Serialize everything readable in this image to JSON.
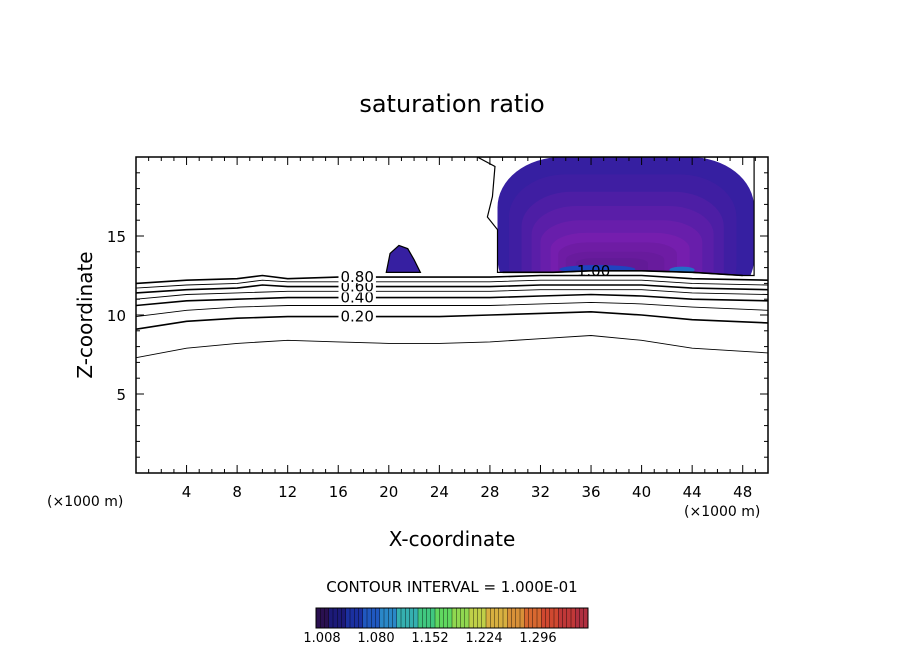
{
  "chart_data": {
    "type": "contour",
    "title": "saturation ratio",
    "xlabel": "X-coordinate",
    "ylabel": "Z-coordinate",
    "x_unit_left": "(×1000 m)",
    "x_unit_right": "(×1000 m)",
    "xlim": [
      0,
      50
    ],
    "ylim": [
      0,
      20
    ],
    "x_ticks": [
      4,
      8,
      12,
      16,
      20,
      24,
      28,
      32,
      36,
      40,
      44,
      48
    ],
    "y_ticks": [
      5,
      10,
      15
    ],
    "contour_interval_text": "CONTOUR INTERVAL = 1.000E-01",
    "contour_lines": [
      {
        "level": "0.10",
        "labeled": false,
        "points": [
          [
            0,
            7.3
          ],
          [
            4,
            7.9
          ],
          [
            8,
            8.2
          ],
          [
            12,
            8.4
          ],
          [
            16,
            8.3
          ],
          [
            20,
            8.2
          ],
          [
            24,
            8.2
          ],
          [
            28,
            8.3
          ],
          [
            32,
            8.5
          ],
          [
            36,
            8.7
          ],
          [
            40,
            8.4
          ],
          [
            44,
            7.9
          ],
          [
            50,
            7.6
          ]
        ]
      },
      {
        "level": "0.20",
        "labeled": true,
        "label_text": "0.20",
        "label_x": 17.5,
        "points": [
          [
            0,
            9.1
          ],
          [
            4,
            9.6
          ],
          [
            8,
            9.8
          ],
          [
            12,
            9.9
          ],
          [
            16,
            9.9
          ],
          [
            20,
            9.9
          ],
          [
            24,
            9.9
          ],
          [
            28,
            10.0
          ],
          [
            32,
            10.1
          ],
          [
            36,
            10.2
          ],
          [
            40,
            10.0
          ],
          [
            44,
            9.7
          ],
          [
            50,
            9.5
          ]
        ]
      },
      {
        "level": "0.30",
        "labeled": false,
        "points": [
          [
            0,
            9.9
          ],
          [
            4,
            10.3
          ],
          [
            8,
            10.5
          ],
          [
            12,
            10.6
          ],
          [
            16,
            10.6
          ],
          [
            20,
            10.6
          ],
          [
            24,
            10.6
          ],
          [
            28,
            10.6
          ],
          [
            32,
            10.7
          ],
          [
            36,
            10.8
          ],
          [
            40,
            10.7
          ],
          [
            44,
            10.5
          ],
          [
            50,
            10.3
          ]
        ]
      },
      {
        "level": "0.40",
        "labeled": true,
        "label_text": "0.40",
        "label_x": 17.5,
        "points": [
          [
            0,
            10.6
          ],
          [
            4,
            10.9
          ],
          [
            8,
            11.0
          ],
          [
            12,
            11.1
          ],
          [
            16,
            11.1
          ],
          [
            20,
            11.1
          ],
          [
            24,
            11.1
          ],
          [
            28,
            11.1
          ],
          [
            32,
            11.2
          ],
          [
            36,
            11.3
          ],
          [
            40,
            11.2
          ],
          [
            44,
            11.0
          ],
          [
            50,
            10.9
          ]
        ]
      },
      {
        "level": "0.50",
        "labeled": false,
        "points": [
          [
            0,
            11.0
          ],
          [
            4,
            11.3
          ],
          [
            8,
            11.4
          ],
          [
            12,
            11.5
          ],
          [
            16,
            11.5
          ],
          [
            20,
            11.5
          ],
          [
            24,
            11.5
          ],
          [
            28,
            11.5
          ],
          [
            32,
            11.6
          ],
          [
            36,
            11.6
          ],
          [
            40,
            11.6
          ],
          [
            44,
            11.4
          ],
          [
            50,
            11.3
          ]
        ]
      },
      {
        "level": "0.60",
        "labeled": true,
        "label_text": "0.60",
        "label_x": 17.5,
        "points": [
          [
            0,
            11.4
          ],
          [
            4,
            11.6
          ],
          [
            8,
            11.7
          ],
          [
            10,
            11.9
          ],
          [
            12,
            11.8
          ],
          [
            16,
            11.8
          ],
          [
            20,
            11.8
          ],
          [
            24,
            11.8
          ],
          [
            28,
            11.8
          ],
          [
            32,
            11.9
          ],
          [
            36,
            11.9
          ],
          [
            40,
            11.9
          ],
          [
            44,
            11.7
          ],
          [
            50,
            11.6
          ]
        ]
      },
      {
        "level": "0.70",
        "labeled": false,
        "points": [
          [
            0,
            11.7
          ],
          [
            4,
            11.9
          ],
          [
            8,
            12.0
          ],
          [
            10,
            12.2
          ],
          [
            12,
            12.1
          ],
          [
            16,
            12.1
          ],
          [
            20,
            12.1
          ],
          [
            24,
            12.1
          ],
          [
            28,
            12.1
          ],
          [
            32,
            12.2
          ],
          [
            36,
            12.2
          ],
          [
            40,
            12.2
          ],
          [
            44,
            12.0
          ],
          [
            50,
            11.9
          ]
        ]
      },
      {
        "level": "0.80",
        "labeled": true,
        "label_text": "0.80",
        "label_x": 17.5,
        "points": [
          [
            0,
            12.0
          ],
          [
            4,
            12.2
          ],
          [
            8,
            12.3
          ],
          [
            10,
            12.5
          ],
          [
            12,
            12.3
          ],
          [
            16,
            12.4
          ],
          [
            20,
            12.4
          ],
          [
            24,
            12.4
          ],
          [
            28,
            12.4
          ],
          [
            32,
            12.5
          ],
          [
            36,
            12.5
          ],
          [
            40,
            12.5
          ],
          [
            44,
            12.3
          ],
          [
            50,
            12.2
          ]
        ]
      },
      {
        "level": "1.00",
        "labeled": true,
        "label_text": "1.00",
        "label_x": 36.2,
        "points": [
          [
            29,
            12.7
          ],
          [
            33,
            12.7
          ],
          [
            36,
            12.8
          ],
          [
            40,
            12.8
          ],
          [
            44,
            12.7
          ],
          [
            48,
            12.5
          ]
        ]
      }
    ],
    "filled_regions": [
      {
        "name": "main",
        "outline": [
          [
            27,
            20
          ],
          [
            28.4,
            19.4
          ],
          [
            28.2,
            17.5
          ],
          [
            27.8,
            16.2
          ],
          [
            28.6,
            15.4
          ],
          [
            28.6,
            12.7
          ],
          [
            33,
            12.7
          ],
          [
            36,
            12.8
          ],
          [
            40,
            12.8
          ],
          [
            44,
            12.7
          ],
          [
            48,
            12.5
          ],
          [
            48.9,
            12.5
          ],
          [
            48.9,
            20
          ]
        ],
        "bands": [
          {
            "x1": 28.6,
            "x2": 48.9,
            "y1": 12.9,
            "y2": 20,
            "value": 1.02
          },
          {
            "x1": 29.5,
            "x2": 47.5,
            "y1": 12.9,
            "y2": 18.9,
            "value": 1.018
          },
          {
            "x1": 30.5,
            "x2": 46.5,
            "y1": 12.9,
            "y2": 17.8,
            "value": 1.016
          },
          {
            "x1": 31.3,
            "x2": 45.7,
            "y1": 12.9,
            "y2": 16.9,
            "value": 1.014
          },
          {
            "x1": 32.0,
            "x2": 44.8,
            "y1": 12.9,
            "y2": 16.0,
            "value": 1.012
          },
          {
            "x1": 32.8,
            "x2": 43.8,
            "y1": 12.9,
            "y2": 15.2,
            "value": 1.01
          },
          {
            "x1": 33.4,
            "x2": 42.8,
            "y1": 12.9,
            "y2": 14.6,
            "value": 1.008
          },
          {
            "x1": 34.0,
            "x2": 41.8,
            "y1": 12.9,
            "y2": 14.0,
            "value": 1.007
          },
          {
            "x1": 34.8,
            "x2": 40.5,
            "y1": 12.9,
            "y2": 13.6,
            "value": 1.006
          }
        ],
        "highlight": [
          {
            "x1": 33.5,
            "x2": 39.5,
            "y1": 12.7,
            "y2": 13.1,
            "value": 1.04
          },
          {
            "x1": 42.2,
            "x2": 44.2,
            "y1": 12.7,
            "y2": 13.0,
            "value": 1.05
          }
        ]
      },
      {
        "name": "small",
        "outline": [
          [
            19.8,
            12.7
          ],
          [
            20.1,
            13.9
          ],
          [
            20.8,
            14.4
          ],
          [
            21.5,
            14.2
          ],
          [
            22.0,
            13.5
          ],
          [
            22.5,
            12.7
          ]
        ],
        "value": 1.02
      }
    ],
    "colorbar": {
      "colors": [
        "#2a1050",
        "#1c1a78",
        "#1b30a0",
        "#2058c0",
        "#2a88c8",
        "#35b0b0",
        "#40c880",
        "#60d860",
        "#90d850",
        "#c0d048",
        "#d8b040",
        "#d89038",
        "#d86830",
        "#d04830",
        "#c03838",
        "#b03040"
      ],
      "tick_labels": [
        "1.008",
        "1.080",
        "1.152",
        "1.224",
        "1.296"
      ]
    }
  }
}
